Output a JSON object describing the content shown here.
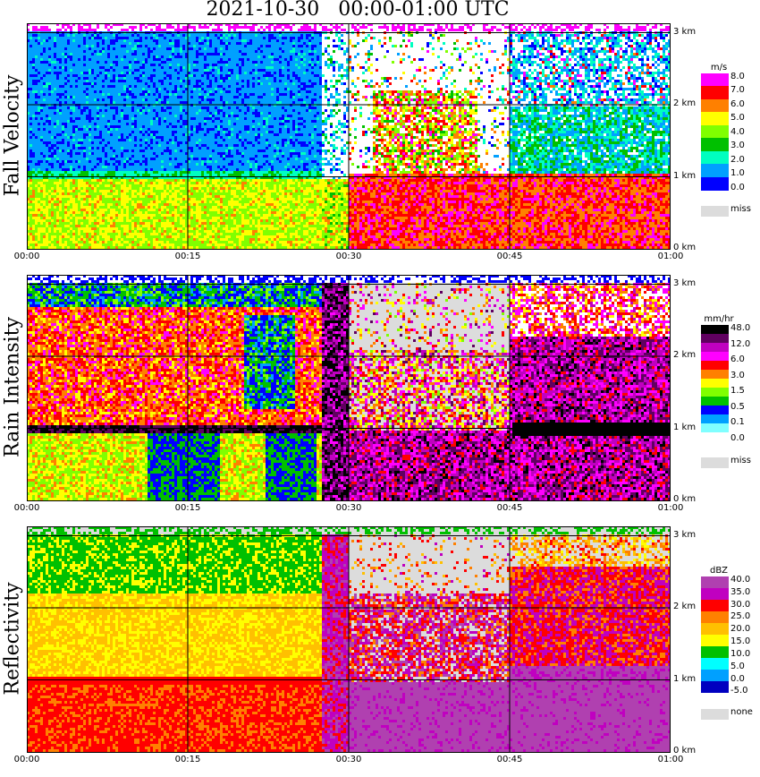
{
  "title": "2021-10-30   00:00-01:00 UTC",
  "time_ticks": [
    "00:00",
    "00:15",
    "00:30",
    "00:45",
    "01:00"
  ],
  "height_ticks": [
    "0 km",
    "1 km",
    "2 km",
    "3 km"
  ],
  "panels": [
    {
      "id": "fall-velocity",
      "ylabel": "Fall Velocity",
      "unit": "m/s",
      "legend_labels": [
        "8.0",
        "7.0",
        "6.0",
        "5.0",
        "4.0",
        "3.0",
        "2.0",
        "1.0",
        "0.0"
      ],
      "legend_colors": [
        "#ff00ff",
        "#ff0000",
        "#ff8000",
        "#ffff00",
        "#80ff00",
        "#00c000",
        "#00ffc0",
        "#00a0ff",
        "#0000ff"
      ],
      "missing_label": "miss"
    },
    {
      "id": "rain-intensity",
      "ylabel": "Rain Intensity",
      "unit": "mm/hr",
      "legend_labels": [
        "48.0",
        "12.0",
        "6.0",
        "3.0",
        "1.5",
        "0.5",
        "0.1",
        "0.0"
      ],
      "legend_colors": [
        "#000000",
        "#600060",
        "#c000c0",
        "#ff00ff",
        "#ff0000",
        "#ff8000",
        "#ffff00",
        "#80ff00",
        "#00c000",
        "#0000ff",
        "#00a0ff",
        "#80ffff",
        "#ffffff"
      ],
      "missing_label": "miss"
    },
    {
      "id": "reflectivity",
      "ylabel": "Reflectivity",
      "unit": "dBZ",
      "legend_labels": [
        "40.0",
        "35.0",
        "30.0",
        "25.0",
        "20.0",
        "15.0",
        "10.0",
        "5.0",
        "0.0",
        "-5.0"
      ],
      "legend_colors": [
        "#b040b0",
        "#c000c0",
        "#ff0000",
        "#ff8000",
        "#ffc000",
        "#ffff00",
        "#00c000",
        "#00ffff",
        "#00a0ff",
        "#0000c0"
      ],
      "missing_label": "none"
    }
  ],
  "chart_data": {
    "type": "heatmap",
    "title": "2021-10-30   00:00-01:00 UTC",
    "x": {
      "label": "",
      "range": [
        "00:00",
        "01:00"
      ],
      "ticks": [
        "00:00",
        "00:15",
        "00:30",
        "00:45",
        "01:00"
      ]
    },
    "y": {
      "label": "",
      "range_km": [
        0,
        3.1
      ],
      "ticks_km": [
        0,
        1,
        2,
        3
      ]
    },
    "grid": true,
    "notes_visible": "three time-height panels",
    "series": [
      {
        "name": "Fall Velocity",
        "unit": "m/s"
      },
      {
        "name": "Rain Intensity",
        "unit": "mm/hr"
      },
      {
        "name": "Reflectivity",
        "unit": "dBZ"
      }
    ]
  }
}
